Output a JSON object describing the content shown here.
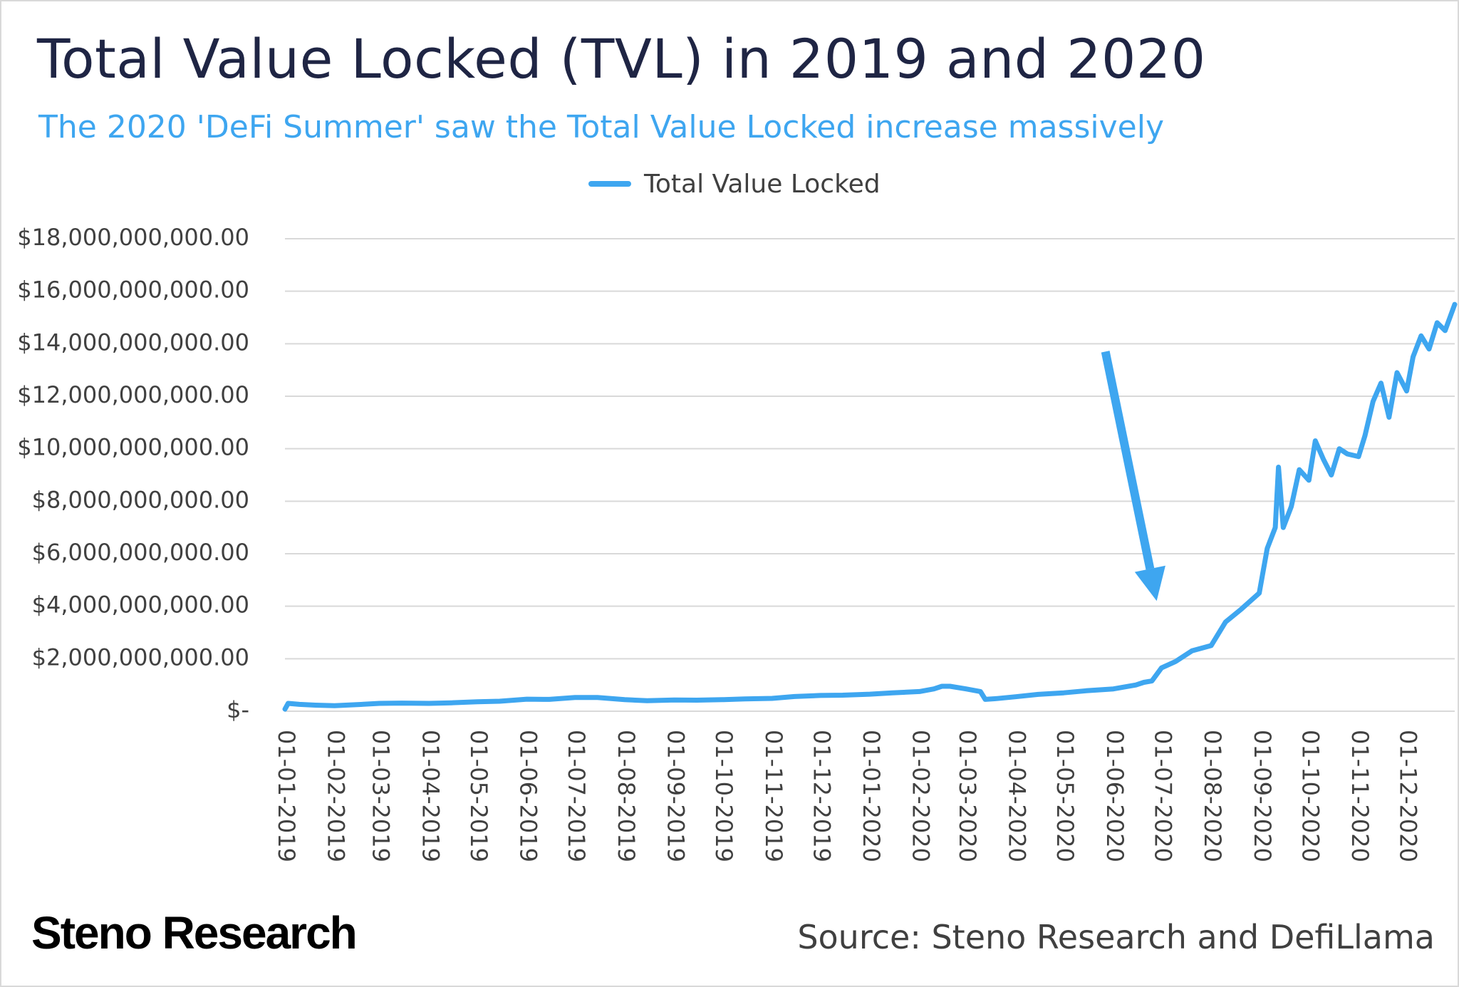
{
  "header": {
    "title": "Total Value Locked (TVL) in 2019 and 2020",
    "subtitle": "The 2020 'DeFi Summer' saw the Total Value Locked increase massively"
  },
  "footer": {
    "brand": "Steno Research",
    "source": "Source: Steno Research and DefiLlama"
  },
  "colors": {
    "series": "#3ea6f0",
    "title": "#1f2544",
    "subtitle": "#3ea6f0",
    "grid": "#d9d9d9",
    "text": "#404040"
  },
  "chart_data": {
    "type": "line",
    "title": "Total Value Locked (TVL) in 2019 and 2020",
    "subtitle": "The 2020 'DeFi Summer' saw the Total Value Locked increase massively",
    "xlabel": "",
    "ylabel": "",
    "legend": "top-center",
    "grid": "horizontal",
    "ylim": [
      0,
      18000000000
    ],
    "yticks": [
      0,
      2000000000,
      4000000000,
      6000000000,
      8000000000,
      10000000000,
      12000000000,
      14000000000,
      16000000000,
      18000000000
    ],
    "ytick_labels": [
      "$-",
      "$2,000,000,000.00",
      "$4,000,000,000.00",
      "$6,000,000,000.00",
      "$8,000,000,000.00",
      "$10,000,000,000.00",
      "$12,000,000,000.00",
      "$14,000,000,000.00",
      "$16,000,000,000.00",
      "$18,000,000,000.00"
    ],
    "xlim": [
      "2019-01-01",
      "2020-12-31"
    ],
    "xtick_labels": [
      "01-01-2019",
      "01-02-2019",
      "01-03-2019",
      "01-04-2019",
      "01-05-2019",
      "01-06-2019",
      "01-07-2019",
      "01-08-2019",
      "01-09-2019",
      "01-10-2019",
      "01-11-2019",
      "01-12-2019",
      "01-01-2020",
      "01-02-2020",
      "01-03-2020",
      "01-04-2020",
      "01-05-2020",
      "01-06-2020",
      "01-07-2020",
      "01-08-2020",
      "01-09-2020",
      "01-10-2020",
      "01-11-2020",
      "01-12-2020"
    ],
    "series": [
      {
        "name": "Total Value Locked",
        "color": "#3ea6f0",
        "x": [
          "2019-01-01",
          "2019-01-03",
          "2019-01-10",
          "2019-01-20",
          "2019-02-01",
          "2019-02-15",
          "2019-03-01",
          "2019-03-15",
          "2019-04-01",
          "2019-04-15",
          "2019-05-01",
          "2019-05-15",
          "2019-06-01",
          "2019-06-15",
          "2019-07-01",
          "2019-07-15",
          "2019-08-01",
          "2019-08-15",
          "2019-09-01",
          "2019-09-15",
          "2019-10-01",
          "2019-10-15",
          "2019-11-01",
          "2019-11-15",
          "2019-12-01",
          "2019-12-15",
          "2020-01-01",
          "2020-01-15",
          "2020-02-01",
          "2020-02-10",
          "2020-02-15",
          "2020-02-20",
          "2020-03-01",
          "2020-03-10",
          "2020-03-13",
          "2020-03-20",
          "2020-04-01",
          "2020-04-15",
          "2020-05-01",
          "2020-05-15",
          "2020-06-01",
          "2020-06-15",
          "2020-06-20",
          "2020-06-25",
          "2020-07-01",
          "2020-07-10",
          "2020-07-20",
          "2020-08-01",
          "2020-08-10",
          "2020-08-20",
          "2020-08-31",
          "2020-09-05",
          "2020-09-10",
          "2020-09-12",
          "2020-09-15",
          "2020-09-20",
          "2020-09-25",
          "2020-10-01",
          "2020-10-05",
          "2020-10-10",
          "2020-10-15",
          "2020-10-20",
          "2020-10-25",
          "2020-11-01",
          "2020-11-05",
          "2020-11-10",
          "2020-11-15",
          "2020-11-20",
          "2020-11-25",
          "2020-12-01",
          "2020-12-05",
          "2020-12-10",
          "2020-12-15",
          "2020-12-20",
          "2020-12-25",
          "2020-12-31"
        ],
        "values": [
          80000000,
          300000000,
          260000000,
          230000000,
          210000000,
          250000000,
          300000000,
          310000000,
          300000000,
          320000000,
          360000000,
          380000000,
          460000000,
          450000000,
          520000000,
          520000000,
          440000000,
          400000000,
          430000000,
          420000000,
          440000000,
          470000000,
          490000000,
          560000000,
          600000000,
          610000000,
          650000000,
          700000000,
          750000000,
          850000000,
          950000000,
          950000000,
          850000000,
          750000000,
          450000000,
          480000000,
          550000000,
          640000000,
          700000000,
          780000000,
          850000000,
          1000000000,
          1100000000,
          1150000000,
          1650000000,
          1900000000,
          2300000000,
          2500000000,
          3400000000,
          3900000000,
          4500000000,
          6200000000,
          7000000000,
          9300000000,
          7000000000,
          7800000000,
          9200000000,
          8800000000,
          10300000000,
          9600000000,
          9000000000,
          10000000000,
          9800000000,
          9700000000,
          10500000000,
          11800000000,
          12500000000,
          11200000000,
          12900000000,
          12200000000,
          13500000000,
          14300000000,
          13800000000,
          14800000000,
          14500000000,
          15500000000
        ]
      }
    ],
    "annotations": [
      {
        "type": "arrow",
        "from": [
          "2020-05-27",
          13700000000
        ],
        "to": [
          "2020-06-28",
          4200000000
        ]
      }
    ]
  }
}
